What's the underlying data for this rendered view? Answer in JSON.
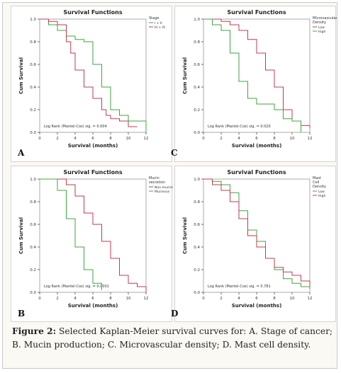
{
  "caption": {
    "label": "Figure 2:",
    "text": " Selected Kaplan-Meier survival curves for: A. Stage of cancer; B. Mucin production; C. Microvascular density; D. Mast cell density."
  },
  "colors": {
    "green": "#3fa63f",
    "red": "#c03b50",
    "axis": "#333333"
  },
  "chart_data": [
    {
      "panel": "A",
      "type": "line",
      "step": true,
      "title": "Survival Functions",
      "xlabel": "Survival (months)",
      "ylabel": "Cum Survival",
      "xticks": [
        0,
        2,
        4,
        6,
        8,
        10,
        12
      ],
      "yticks": [
        0.0,
        0.2,
        0.4,
        0.6,
        0.8,
        1.0
      ],
      "xlim": [
        0,
        12
      ],
      "ylim": [
        0,
        1.0
      ],
      "legend_title": [
        "Stage"
      ],
      "annotation": "Log Rank (Mantel-Cox) sig. = 0.004",
      "series": [
        {
          "name": "I + II",
          "color": "green",
          "x": [
            0,
            1,
            2,
            3,
            4,
            5,
            6,
            7,
            8,
            9,
            10,
            12
          ],
          "y": [
            1.0,
            0.95,
            0.9,
            0.85,
            0.82,
            0.8,
            0.6,
            0.4,
            0.2,
            0.15,
            0.1,
            0.0
          ]
        },
        {
          "name": "III + IV",
          "color": "red",
          "x": [
            0,
            1,
            2,
            3,
            3.5,
            4,
            5,
            6,
            7,
            7.5,
            8,
            9,
            10,
            11
          ],
          "y": [
            1.0,
            0.98,
            0.95,
            0.8,
            0.7,
            0.55,
            0.4,
            0.3,
            0.2,
            0.15,
            0.12,
            0.1,
            0.05,
            0.05
          ]
        }
      ]
    },
    {
      "panel": "C",
      "type": "line",
      "step": true,
      "title": "Survival Functions",
      "xlabel": "Survival (months)",
      "ylabel": "Cum Survival",
      "xticks": [
        0,
        2,
        4,
        6,
        8,
        10,
        12
      ],
      "yticks": [
        0.0,
        0.2,
        0.4,
        0.6,
        0.8,
        1.0
      ],
      "xlim": [
        0,
        12
      ],
      "ylim": [
        0,
        1.0
      ],
      "legend_title": [
        "Microvascular",
        "Density"
      ],
      "annotation": "Log Rank (Mantel-Cox) sig. = 0.020",
      "series": [
        {
          "name": "Low",
          "color": "red",
          "x": [
            0,
            2,
            3,
            4,
            5,
            6,
            7,
            8,
            9,
            10,
            11,
            12
          ],
          "y": [
            1.0,
            0.98,
            0.95,
            0.9,
            0.82,
            0.7,
            0.55,
            0.4,
            0.2,
            0.1,
            0.06,
            0.04
          ]
        },
        {
          "name": "High",
          "color": "green",
          "x": [
            0,
            1,
            2,
            3,
            4,
            5,
            6,
            8,
            9,
            10,
            11
          ],
          "y": [
            1.0,
            0.95,
            0.9,
            0.7,
            0.45,
            0.3,
            0.25,
            0.2,
            0.12,
            0.1,
            0.0
          ]
        }
      ]
    },
    {
      "panel": "B",
      "type": "line",
      "step": true,
      "title": "Survival Functions",
      "xlabel": "Survival (months)",
      "ylabel": "Cum Survival",
      "xticks": [
        0,
        2,
        4,
        6,
        8,
        10,
        12
      ],
      "yticks": [
        0.0,
        0.2,
        0.4,
        0.6,
        0.8,
        1.0
      ],
      "xlim": [
        0,
        12
      ],
      "ylim": [
        0,
        1.0
      ],
      "legend_title": [
        "Mucin",
        "secretion"
      ],
      "annotation": "Log Rank (Mantel-Cox) sig. = 0.0001",
      "series": [
        {
          "name": "Non-mucinous",
          "color": "red",
          "x": [
            0,
            3,
            4,
            5,
            6,
            7,
            8,
            9,
            10,
            11,
            12
          ],
          "y": [
            1.0,
            0.95,
            0.85,
            0.7,
            0.6,
            0.45,
            0.3,
            0.15,
            0.08,
            0.05,
            0.0
          ]
        },
        {
          "name": "Mucinous",
          "color": "green",
          "x": [
            0,
            2,
            3,
            4,
            5,
            6,
            7
          ],
          "y": [
            1.0,
            0.9,
            0.65,
            0.4,
            0.2,
            0.08,
            0.02
          ]
        }
      ]
    },
    {
      "panel": "D",
      "type": "line",
      "step": true,
      "title": "Survival Functions",
      "xlabel": "Survival (months)",
      "ylabel": "Cum Survival",
      "xticks": [
        0,
        2,
        4,
        6,
        8,
        10,
        12
      ],
      "yticks": [
        0.0,
        0.2,
        0.4,
        0.6,
        0.8,
        1.0
      ],
      "xlim": [
        0,
        12
      ],
      "ylim": [
        0,
        1.0
      ],
      "legend_title": [
        "Mast",
        "Cell",
        "Density"
      ],
      "annotation": "Log Rank (Mantel-Cox) sig. = 0.781",
      "series": [
        {
          "name": "Low",
          "color": "green",
          "x": [
            0,
            1,
            2,
            3,
            4,
            5,
            6,
            7,
            8,
            9,
            10,
            11,
            12
          ],
          "y": [
            1.0,
            0.98,
            0.95,
            0.88,
            0.72,
            0.55,
            0.45,
            0.3,
            0.2,
            0.12,
            0.08,
            0.05,
            0.03
          ]
        },
        {
          "name": "High",
          "color": "red",
          "x": [
            0,
            1,
            2,
            3,
            4,
            5,
            6,
            7,
            8,
            9,
            10,
            11,
            12
          ],
          "y": [
            1.0,
            0.95,
            0.9,
            0.8,
            0.65,
            0.5,
            0.4,
            0.3,
            0.22,
            0.18,
            0.15,
            0.1,
            0.05
          ]
        }
      ]
    }
  ]
}
